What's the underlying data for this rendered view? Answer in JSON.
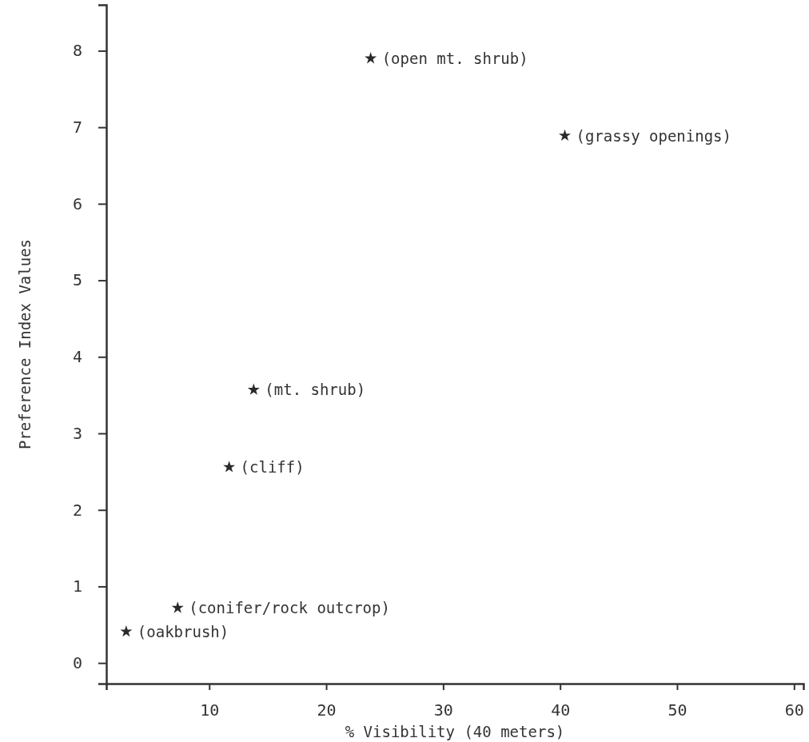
{
  "chart_data": {
    "type": "scatter",
    "xlabel": "% Visibility (40 meters)",
    "ylabel": "Preference Index Values",
    "x": [
      23.8,
      40.4,
      13.8,
      11.7,
      7.3,
      2.9
    ],
    "series": [
      {
        "color": "#2a2a2a",
        "values": [
          7.9,
          6.89,
          3.57,
          2.56,
          0.72,
          0.41
        ]
      }
    ],
    "annotations": [
      {
        "text": "(open mt. shrub)",
        "x": 23.8,
        "y": 7.9
      },
      {
        "text": "(grassy openings)",
        "x": 40.4,
        "y": 6.89
      },
      {
        "text": "(mt. shrub)",
        "x": 13.8,
        "y": 3.57
      },
      {
        "text": "(cliff)",
        "x": 11.7,
        "y": 2.56
      },
      {
        "text": "(conifer/rock outcrop)",
        "x": 7.3,
        "y": 0.72
      },
      {
        "text": "(oakbrush)",
        "x": 2.9,
        "y": 0.41
      }
    ],
    "xlim": [
      1.2,
      60.8
    ],
    "ylim": [
      -0.27,
      8.6
    ],
    "xticks": [
      10,
      20,
      30,
      40,
      50,
      60
    ],
    "yticks": [
      0,
      1,
      2,
      3,
      4,
      5,
      6,
      7,
      8
    ],
    "marker": "star",
    "grid": false
  }
}
